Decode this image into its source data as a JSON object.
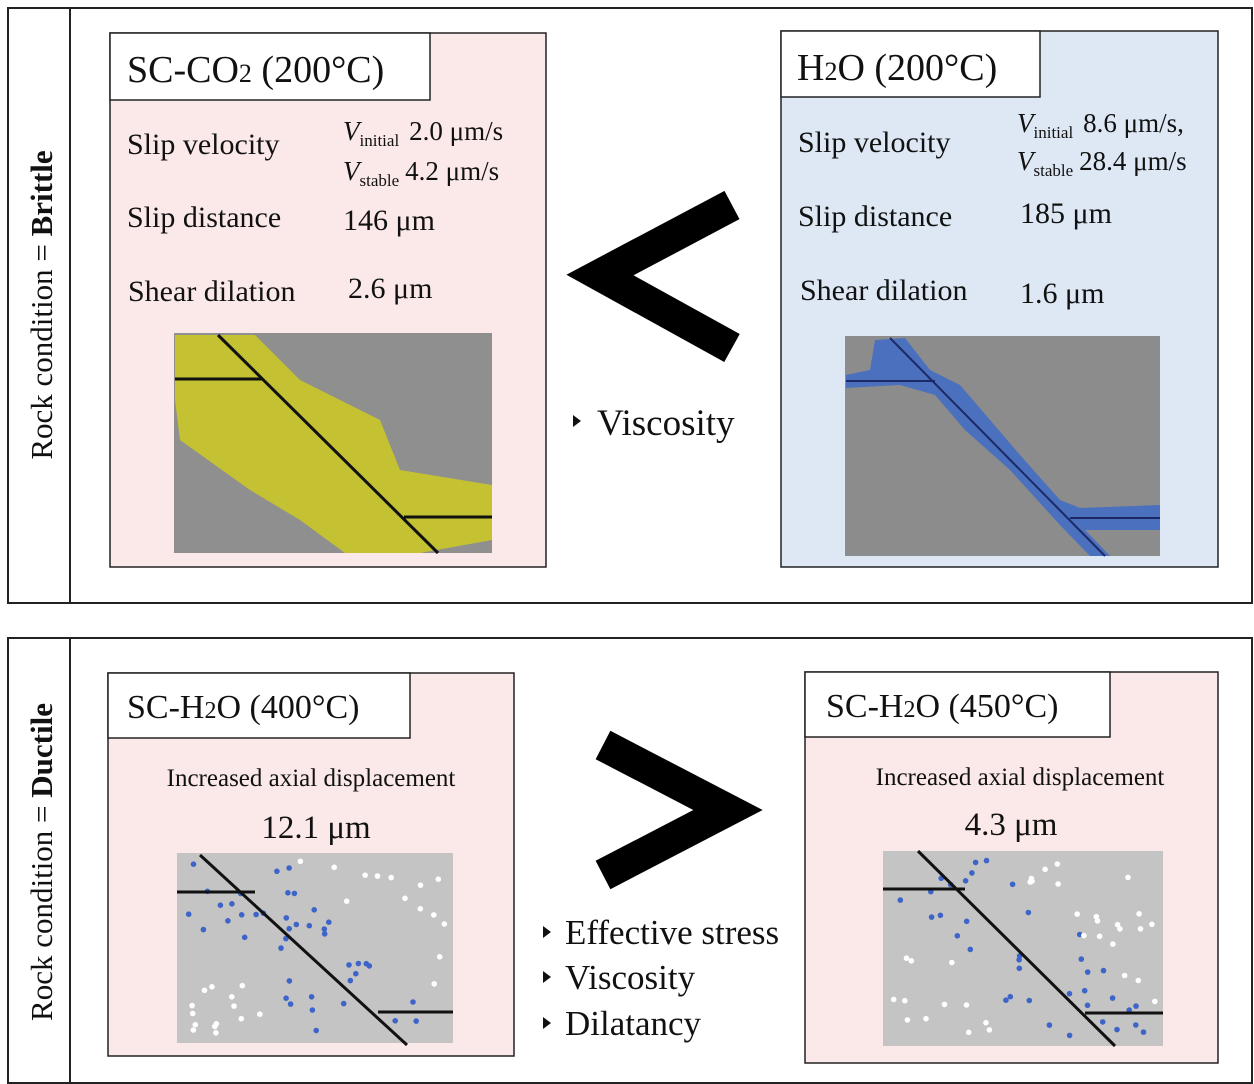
{
  "brittle": {
    "side_label": "Rock condition = ",
    "condition": "Brittle",
    "left": {
      "title_main": "SC-CO",
      "title_sub": "2",
      "title_rest": " (200°C)",
      "slip_velocity_label": "Slip velocity",
      "initial_symbol": "V",
      "initial_sub": "initial",
      "initial_value": "2.0 μm/s",
      "stable_symbol": "V",
      "stable_sub": "stable",
      "stable_value": "4.2 μm/s",
      "slip_distance_label": "Slip distance",
      "slip_distance": "146 μm",
      "shear_dilation_label": "Shear dilation",
      "shear_dilation": "2.6 μm"
    },
    "right": {
      "title_main": "H",
      "title_sub": "2",
      "title_rest": "O (200°C)",
      "slip_velocity_label": "Slip velocity",
      "initial_symbol": "V",
      "initial_sub": "initial",
      "initial_value": "8.6 μm/s,",
      "stable_symbol": "V",
      "stable_sub": "stable",
      "stable_value": "28.4 μm/s",
      "slip_distance_label": "Slip distance",
      "slip_distance": "185 μm",
      "shear_dilation_label": "Shear dilation",
      "shear_dilation": "1.6 μm"
    },
    "factors": [
      "Viscosity"
    ]
  },
  "ductile": {
    "side_label": "Rock condition = ",
    "condition": "Ductile",
    "left": {
      "title_main": "SC-H",
      "title_sub": "2",
      "title_rest": "O (400°C)",
      "caption": "Increased axial displacement",
      "value": "12.1 μm"
    },
    "right": {
      "title_main": "SC-H",
      "title_sub": "2",
      "title_rest": "O (450°C)",
      "caption": "Increased axial displacement",
      "value": "4.3 μm"
    },
    "factors": [
      "Effective stress",
      "Viscosity",
      "Dilatancy"
    ]
  }
}
